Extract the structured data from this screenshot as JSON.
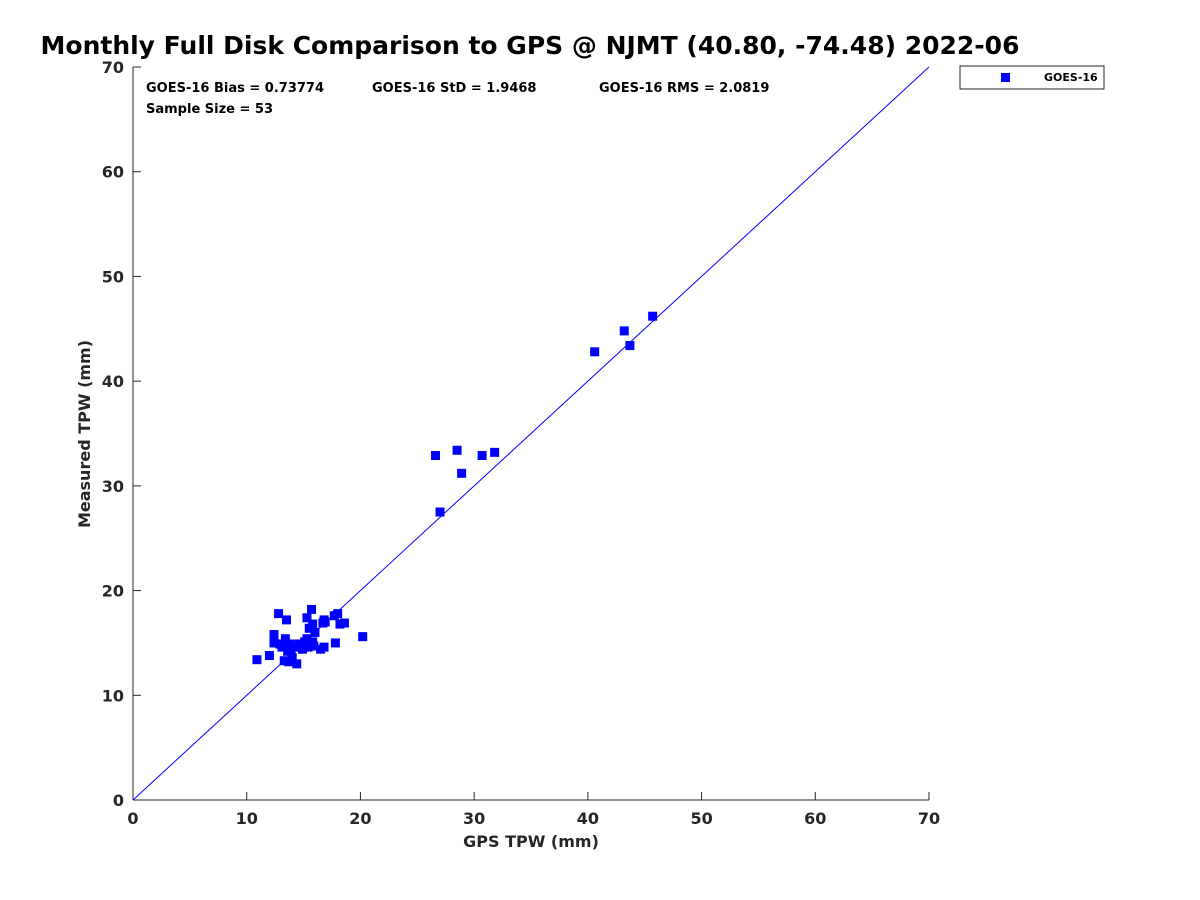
{
  "chart_data": {
    "type": "scatter",
    "title": "Monthly Full Disk Comparison to GPS @ NJMT (40.80, -74.48) 2022-06",
    "xlabel": "GPS TPW (mm)",
    "ylabel": "Measured TPW (mm)",
    "xlim": [
      0,
      70
    ],
    "ylim": [
      0,
      70
    ],
    "xticks": [
      "0",
      "10",
      "20",
      "30",
      "40",
      "50",
      "60",
      "70"
    ],
    "yticks": [
      "0",
      "10",
      "20",
      "30",
      "40",
      "50",
      "60",
      "70"
    ],
    "grid": false,
    "legend_position": "outside-top-right",
    "reference_line": {
      "from": [
        0,
        0
      ],
      "to": [
        70,
        70
      ],
      "color": "#0000ff"
    },
    "stats": {
      "bias": "GOES-16 Bias = 0.73774",
      "std": "GOES-16 StD = 1.9468",
      "rms": "GOES-16 RMS = 2.0819",
      "sample_size": "Sample Size = 53"
    },
    "series": [
      {
        "name": "GOES-16",
        "color": "#0000ff",
        "marker": "square",
        "points": [
          [
            10.9,
            13.4
          ],
          [
            12.0,
            13.8
          ],
          [
            12.4,
            15.0
          ],
          [
            12.4,
            15.8
          ],
          [
            12.8,
            17.8
          ],
          [
            12.9,
            14.9
          ],
          [
            13.1,
            14.6
          ],
          [
            13.3,
            13.3
          ],
          [
            13.4,
            15.4
          ],
          [
            13.5,
            17.2
          ],
          [
            13.6,
            14.2
          ],
          [
            13.7,
            13.2
          ],
          [
            13.8,
            14.9
          ],
          [
            14.0,
            13.6
          ],
          [
            14.2,
            14.6
          ],
          [
            14.4,
            13.0
          ],
          [
            14.8,
            14.9
          ],
          [
            14.9,
            14.4
          ],
          [
            15.1,
            15.1
          ],
          [
            15.3,
            17.4
          ],
          [
            15.3,
            15.4
          ],
          [
            15.5,
            14.9
          ],
          [
            15.5,
            16.4
          ],
          [
            15.7,
            18.2
          ],
          [
            15.8,
            15.1
          ],
          [
            15.8,
            16.8
          ],
          [
            15.9,
            14.7
          ],
          [
            16.0,
            16.0
          ],
          [
            16.5,
            14.4
          ],
          [
            16.7,
            16.9
          ],
          [
            16.8,
            17.2
          ],
          [
            16.8,
            14.6
          ],
          [
            17.7,
            17.6
          ],
          [
            17.8,
            15.0
          ],
          [
            18.0,
            17.8
          ],
          [
            18.2,
            16.8
          ],
          [
            18.6,
            16.9
          ],
          [
            20.2,
            15.6
          ],
          [
            26.6,
            32.9
          ],
          [
            27.0,
            27.5
          ],
          [
            28.5,
            33.4
          ],
          [
            28.9,
            31.2
          ],
          [
            30.7,
            32.9
          ],
          [
            31.8,
            33.2
          ],
          [
            40.6,
            42.8
          ],
          [
            43.2,
            44.8
          ],
          [
            43.7,
            43.4
          ],
          [
            45.7,
            46.2
          ],
          [
            13.2,
            14.8
          ],
          [
            14.6,
            14.9
          ],
          [
            15.4,
            14.6
          ],
          [
            16.9,
            17.0
          ],
          [
            13.9,
            14.3
          ]
        ]
      }
    ]
  }
}
